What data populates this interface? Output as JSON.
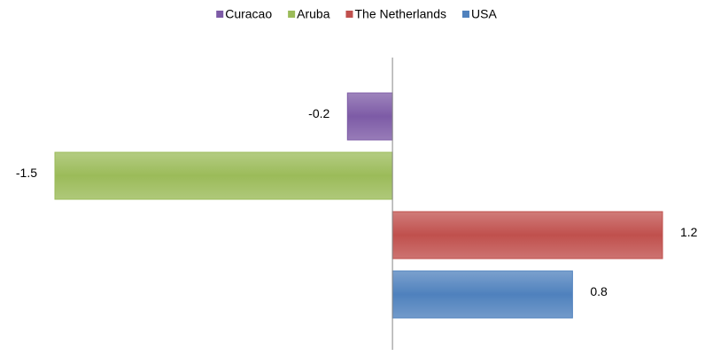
{
  "chart_data": {
    "type": "bar",
    "orientation": "horizontal",
    "series": [
      {
        "name": "Curacao",
        "color": "#7d5ba6",
        "values": [
          -0.2
        ]
      },
      {
        "name": "Aruba",
        "color": "#9bbb59",
        "values": [
          -1.5
        ]
      },
      {
        "name": "The Netherlands",
        "color": "#c0504d",
        "values": [
          1.2
        ]
      },
      {
        "name": "USA",
        "color": "#4f81bd",
        "values": [
          0.8
        ]
      }
    ],
    "legend": "top"
  }
}
